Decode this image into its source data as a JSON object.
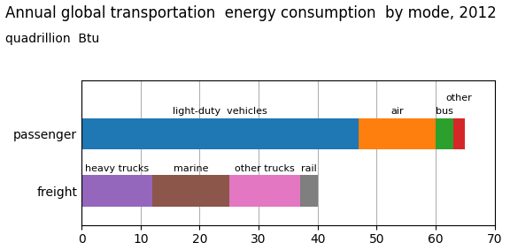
{
  "chart_data": {
    "type": "bar",
    "orientation": "horizontal",
    "stacked": true,
    "title": "Annual global transportation  energy consumption  by mode, 2012",
    "subtitle": "quadrillion  Btu",
    "categories": [
      "freight",
      "passenger"
    ],
    "series": [
      {
        "name": "light-duty  vehicles",
        "values": [
          null,
          47
        ]
      },
      {
        "name": "air",
        "values": [
          null,
          13
        ]
      },
      {
        "name": "bus",
        "values": [
          null,
          3
        ]
      },
      {
        "name": "other",
        "values": [
          null,
          2
        ]
      },
      {
        "name": "heavy trucks",
        "values": [
          12,
          null
        ]
      },
      {
        "name": "marine",
        "values": [
          13,
          null
        ]
      },
      {
        "name": "other trucks",
        "values": [
          12,
          null
        ]
      },
      {
        "name": "rail",
        "values": [
          3,
          null
        ]
      }
    ],
    "xlim": [
      0,
      70
    ],
    "xticks": [
      0,
      10,
      20,
      30,
      40,
      50,
      60,
      70
    ],
    "grid": true
  }
}
